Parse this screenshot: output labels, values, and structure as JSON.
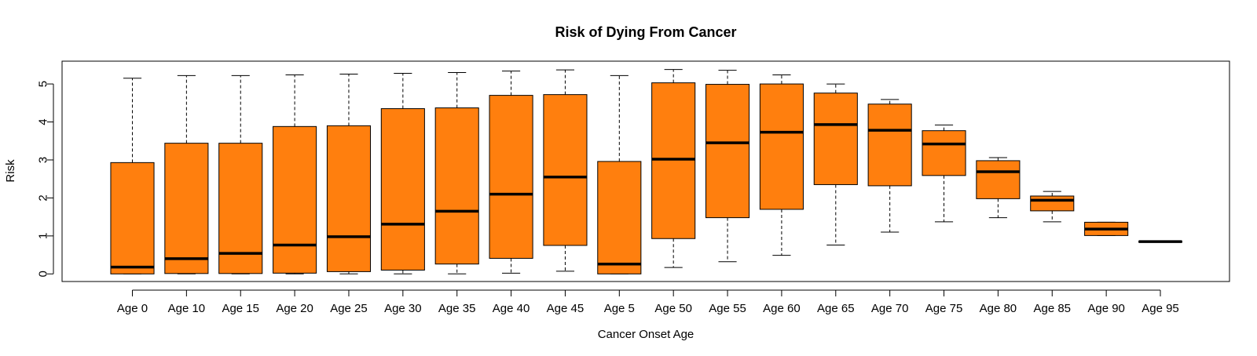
{
  "chart_data": {
    "type": "boxplot",
    "title": "Risk of Dying From Cancer",
    "xlabel": "Cancer Onset Age",
    "ylabel": "Risk",
    "ylim": [
      -0.2,
      5.6
    ],
    "yticks": [
      0,
      1,
      2,
      3,
      4,
      5
    ],
    "fill_color": "#ff7f0e",
    "categories": [
      "Age 0",
      "Age 10",
      "Age 15",
      "Age 20",
      "Age 25",
      "Age 30",
      "Age 35",
      "Age 40",
      "Age 45",
      "Age 5",
      "Age 50",
      "Age 55",
      "Age 60",
      "Age 65",
      "Age 70",
      "Age 75",
      "Age 80",
      "Age 85",
      "Age 90",
      "Age 95"
    ],
    "boxes": [
      {
        "min": 0.0,
        "q1": 0.0,
        "median": 0.18,
        "q3": 2.93,
        "max": 5.15
      },
      {
        "min": 0.0,
        "q1": 0.01,
        "median": 0.4,
        "q3": 3.44,
        "max": 5.22
      },
      {
        "min": 0.0,
        "q1": 0.01,
        "median": 0.54,
        "q3": 3.44,
        "max": 5.22
      },
      {
        "min": 0.0,
        "q1": 0.02,
        "median": 0.76,
        "q3": 3.88,
        "max": 5.24
      },
      {
        "min": 0.0,
        "q1": 0.06,
        "median": 0.98,
        "q3": 3.9,
        "max": 5.26
      },
      {
        "min": 0.0,
        "q1": 0.1,
        "median": 1.31,
        "q3": 4.35,
        "max": 5.28
      },
      {
        "min": 0.0,
        "q1": 0.26,
        "median": 1.65,
        "q3": 4.37,
        "max": 5.3
      },
      {
        "min": 0.02,
        "q1": 0.41,
        "median": 2.1,
        "q3": 4.7,
        "max": 5.34
      },
      {
        "min": 0.07,
        "q1": 0.75,
        "median": 2.55,
        "q3": 4.72,
        "max": 5.37
      },
      {
        "min": 0.0,
        "q1": 0.0,
        "median": 0.26,
        "q3": 2.96,
        "max": 5.22
      },
      {
        "min": 0.17,
        "q1": 0.93,
        "median": 3.02,
        "q3": 5.03,
        "max": 5.38
      },
      {
        "min": 0.32,
        "q1": 1.48,
        "median": 3.45,
        "q3": 4.99,
        "max": 5.36
      },
      {
        "min": 0.49,
        "q1": 1.7,
        "median": 3.73,
        "q3": 5.0,
        "max": 5.24
      },
      {
        "min": 0.76,
        "q1": 2.35,
        "median": 3.93,
        "q3": 4.76,
        "max": 5.0
      },
      {
        "min": 1.1,
        "q1": 2.32,
        "median": 3.78,
        "q3": 4.47,
        "max": 4.59
      },
      {
        "min": 1.37,
        "q1": 2.59,
        "median": 3.42,
        "q3": 3.77,
        "max": 3.92
      },
      {
        "min": 1.48,
        "q1": 1.98,
        "median": 2.69,
        "q3": 2.98,
        "max": 3.06
      },
      {
        "min": 1.37,
        "q1": 1.66,
        "median": 1.94,
        "q3": 2.05,
        "max": 2.17
      },
      {
        "min": 1.01,
        "q1": 1.01,
        "median": 1.18,
        "q3": 1.36,
        "max": 1.36
      },
      {
        "min": 0.85,
        "q1": 0.85,
        "median": 0.85,
        "q3": 0.85,
        "max": 0.85
      }
    ]
  }
}
